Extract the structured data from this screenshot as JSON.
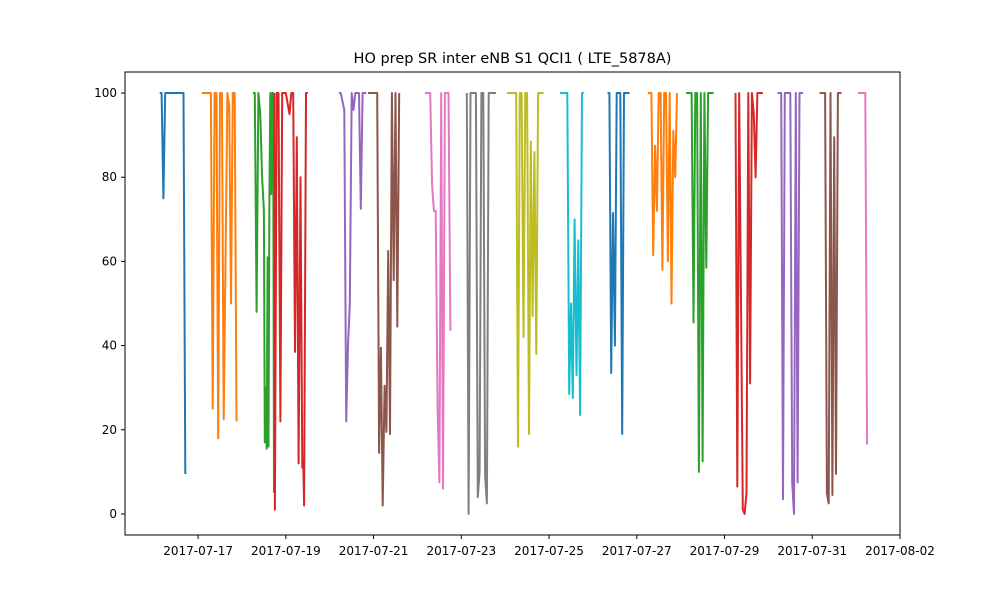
{
  "chart_data": {
    "type": "line",
    "title": "HO prep SR inter eNB S1 QCI1 ( LTE_5878A)",
    "xlabel": "",
    "ylabel": "",
    "x_type": "date",
    "xlim": [
      "2017-07-15T08:00",
      "2017-08-02T00:00"
    ],
    "ylim": [
      -5,
      105
    ],
    "grid": false,
    "x_ticks": [
      "2017-07-17",
      "2017-07-19",
      "2017-07-21",
      "2017-07-23",
      "2017-07-25",
      "2017-07-27",
      "2017-07-29",
      "2017-07-31",
      "2017-08-02"
    ],
    "y_ticks": [
      0,
      20,
      40,
      60,
      80,
      100
    ],
    "series": [
      {
        "color": "#1f77b4",
        "points": [
          [
            "2017-07-16T03:00",
            100
          ],
          [
            "2017-07-16T04:00",
            100
          ],
          [
            "2017-07-16T05:00",
            75
          ],
          [
            "2017-07-16T06:00",
            100
          ],
          [
            "2017-07-16T12:00",
            100
          ],
          [
            "2017-07-16T15:00",
            100
          ],
          [
            "2017-07-16T16:00",
            100
          ],
          [
            "2017-07-16T17:00",
            9.5
          ]
        ]
      },
      {
        "color": "#ff7f0e",
        "points": [
          [
            "2017-07-17T02:00",
            100
          ],
          [
            "2017-07-17T05:00",
            100
          ],
          [
            "2017-07-17T07:00",
            100
          ],
          [
            "2017-07-17T08:00",
            25
          ],
          [
            "2017-07-17T09:00",
            100
          ],
          [
            "2017-07-17T10:00",
            100
          ],
          [
            "2017-07-17T11:00",
            18
          ],
          [
            "2017-07-17T12:00",
            100
          ],
          [
            "2017-07-17T13:00",
            100
          ],
          [
            "2017-07-17T14:00",
            22.5
          ],
          [
            "2017-07-17T16:00",
            100
          ],
          [
            "2017-07-17T17:00",
            97
          ],
          [
            "2017-07-17T18:00",
            50
          ],
          [
            "2017-07-17T19:00",
            100
          ],
          [
            "2017-07-17T20:00",
            100
          ],
          [
            "2017-07-17T21:00",
            22
          ]
        ]
      },
      {
        "color": "#2ca02c",
        "points": [
          [
            "2017-07-18T06:00",
            100
          ],
          [
            "2017-07-18T07:00",
            100
          ],
          [
            "2017-07-18T08:00",
            48
          ],
          [
            "2017-07-18T09:00",
            100
          ],
          [
            "2017-07-18T10:00",
            95
          ],
          [
            "2017-07-18T11:00",
            80
          ],
          [
            "2017-07-18T12:00",
            72
          ],
          [
            "2017-07-18T12:30",
            17
          ],
          [
            "2017-07-18T13:00",
            30
          ],
          [
            "2017-07-18T13:30",
            15.5
          ],
          [
            "2017-07-18T14:00",
            61
          ],
          [
            "2017-07-18T14:30",
            16
          ],
          [
            "2017-07-18T15:00",
            75
          ],
          [
            "2017-07-18T15:30",
            100
          ],
          [
            "2017-07-18T16:00",
            76
          ],
          [
            "2017-07-18T16:30",
            100
          ],
          [
            "2017-07-18T17:00",
            100
          ],
          [
            "2017-07-18T17:30",
            5
          ]
        ]
      },
      {
        "color": "#d62728",
        "points": [
          [
            "2017-07-18T17:40",
            100
          ],
          [
            "2017-07-18T18:00",
            1
          ],
          [
            "2017-07-18T19:00",
            100
          ],
          [
            "2017-07-18T20:00",
            100
          ],
          [
            "2017-07-18T21:00",
            22
          ],
          [
            "2017-07-18T22:00",
            100
          ],
          [
            "2017-07-18T23:00",
            100
          ],
          [
            "2017-07-19T00:00",
            100
          ],
          [
            "2017-07-19T02:00",
            95
          ],
          [
            "2017-07-19T03:00",
            100
          ],
          [
            "2017-07-19T04:00",
            100
          ],
          [
            "2017-07-19T05:00",
            38.5
          ],
          [
            "2017-07-19T06:00",
            89.5
          ],
          [
            "2017-07-19T07:00",
            12
          ],
          [
            "2017-07-19T08:00",
            80
          ],
          [
            "2017-07-19T09:00",
            11
          ],
          [
            "2017-07-19T09:30",
            13
          ],
          [
            "2017-07-19T10:00",
            2
          ],
          [
            "2017-07-19T11:00",
            100
          ],
          [
            "2017-07-19T12:00",
            100
          ]
        ]
      },
      {
        "color": "#9467bd",
        "points": [
          [
            "2017-07-20T05:00",
            100
          ],
          [
            "2017-07-20T06:00",
            100
          ],
          [
            "2017-07-20T07:00",
            98
          ],
          [
            "2017-07-20T08:00",
            96
          ],
          [
            "2017-07-20T09:00",
            22
          ],
          [
            "2017-07-20T10:00",
            40
          ],
          [
            "2017-07-20T11:00",
            50
          ],
          [
            "2017-07-20T12:00",
            100
          ],
          [
            "2017-07-20T13:00",
            96
          ],
          [
            "2017-07-20T14:00",
            100
          ],
          [
            "2017-07-20T16:00",
            100
          ],
          [
            "2017-07-20T17:00",
            72.5
          ],
          [
            "2017-07-20T18:00",
            100
          ],
          [
            "2017-07-20T19:00",
            100
          ],
          [
            "2017-07-20T20:00",
            100
          ]
        ]
      },
      {
        "color": "#8c564b",
        "points": [
          [
            "2017-07-20T21:00",
            100
          ],
          [
            "2017-07-21T00:00",
            100
          ],
          [
            "2017-07-21T01:00",
            100
          ],
          [
            "2017-07-21T02:00",
            100
          ],
          [
            "2017-07-21T03:00",
            14.5
          ],
          [
            "2017-07-21T04:00",
            39.5
          ],
          [
            "2017-07-21T05:00",
            2
          ],
          [
            "2017-07-21T06:00",
            30.5
          ],
          [
            "2017-07-21T07:00",
            19.5
          ],
          [
            "2017-07-21T08:00",
            62.5
          ],
          [
            "2017-07-21T09:00",
            19
          ],
          [
            "2017-07-21T10:00",
            100
          ],
          [
            "2017-07-21T11:00",
            55.5
          ],
          [
            "2017-07-21T12:00",
            100
          ],
          [
            "2017-07-21T13:00",
            44.5
          ],
          [
            "2017-07-21T14:00",
            100
          ]
        ]
      },
      {
        "color": "#e377c2",
        "points": [
          [
            "2017-07-22T04:00",
            100
          ],
          [
            "2017-07-22T06:00",
            100
          ],
          [
            "2017-07-22T07:00",
            100
          ],
          [
            "2017-07-22T08:00",
            78
          ],
          [
            "2017-07-22T09:00",
            72
          ],
          [
            "2017-07-22T10:00",
            72
          ],
          [
            "2017-07-22T11:00",
            25
          ],
          [
            "2017-07-22T12:00",
            7.5
          ],
          [
            "2017-07-22T13:00",
            100
          ],
          [
            "2017-07-22T14:00",
            6
          ],
          [
            "2017-07-22T15:00",
            100
          ],
          [
            "2017-07-22T16:00",
            100
          ],
          [
            "2017-07-22T17:00",
            100
          ],
          [
            "2017-07-22T18:00",
            43.5
          ]
        ]
      },
      {
        "color": "#7f7f7f",
        "points": [
          [
            "2017-07-23T03:00",
            100
          ],
          [
            "2017-07-23T04:00",
            0
          ],
          [
            "2017-07-23T05:00",
            100
          ],
          [
            "2017-07-23T06:00",
            100
          ],
          [
            "2017-07-23T08:00",
            100
          ],
          [
            "2017-07-23T09:00",
            4
          ],
          [
            "2017-07-23T10:00",
            10
          ],
          [
            "2017-07-23T11:00",
            100
          ],
          [
            "2017-07-23T12:00",
            100
          ],
          [
            "2017-07-23T13:00",
            9
          ],
          [
            "2017-07-23T14:00",
            2.5
          ],
          [
            "2017-07-23T15:00",
            100
          ],
          [
            "2017-07-23T16:00",
            100
          ],
          [
            "2017-07-23T17:00",
            100
          ],
          [
            "2017-07-23T18:00",
            100
          ],
          [
            "2017-07-23T19:00",
            100
          ]
        ]
      },
      {
        "color": "#bcbd22",
        "points": [
          [
            "2017-07-24T01:00",
            100
          ],
          [
            "2017-07-24T04:00",
            100
          ],
          [
            "2017-07-24T06:00",
            100
          ],
          [
            "2017-07-24T07:00",
            16
          ],
          [
            "2017-07-24T08:00",
            100
          ],
          [
            "2017-07-24T09:00",
            100
          ],
          [
            "2017-07-24T10:00",
            42
          ],
          [
            "2017-07-24T11:00",
            100
          ],
          [
            "2017-07-24T12:00",
            100
          ],
          [
            "2017-07-24T13:00",
            19
          ],
          [
            "2017-07-24T14:00",
            88.5
          ],
          [
            "2017-07-24T15:00",
            47
          ],
          [
            "2017-07-24T16:00",
            86
          ],
          [
            "2017-07-24T17:00",
            38
          ],
          [
            "2017-07-24T18:00",
            100
          ],
          [
            "2017-07-24T19:00",
            100
          ],
          [
            "2017-07-24T20:00",
            100
          ],
          [
            "2017-07-24T21:00",
            100
          ]
        ]
      },
      {
        "color": "#17becf",
        "points": [
          [
            "2017-07-25T06:00",
            100
          ],
          [
            "2017-07-25T08:00",
            100
          ],
          [
            "2017-07-25T09:00",
            100
          ],
          [
            "2017-07-25T10:00",
            100
          ],
          [
            "2017-07-25T11:00",
            28.5
          ],
          [
            "2017-07-25T12:00",
            50
          ],
          [
            "2017-07-25T13:00",
            27.5
          ],
          [
            "2017-07-25T14:00",
            70
          ],
          [
            "2017-07-25T15:00",
            33
          ],
          [
            "2017-07-25T16:00",
            65
          ],
          [
            "2017-07-25T17:00",
            23.5
          ],
          [
            "2017-07-25T18:00",
            100
          ],
          [
            "2017-07-25T19:00",
            100
          ]
        ]
      },
      {
        "color": "#1f77b4",
        "points": [
          [
            "2017-07-26T08:00",
            100
          ],
          [
            "2017-07-26T09:00",
            100
          ],
          [
            "2017-07-26T10:00",
            33.5
          ],
          [
            "2017-07-26T11:00",
            71.5
          ],
          [
            "2017-07-26T12:00",
            40
          ],
          [
            "2017-07-26T13:00",
            100
          ],
          [
            "2017-07-26T14:00",
            100
          ],
          [
            "2017-07-26T15:00",
            100
          ],
          [
            "2017-07-26T16:00",
            19
          ],
          [
            "2017-07-26T17:00",
            100
          ],
          [
            "2017-07-26T18:00",
            100
          ],
          [
            "2017-07-26T19:00",
            100
          ],
          [
            "2017-07-26T20:00",
            100
          ]
        ]
      },
      {
        "color": "#ff7f0e",
        "points": [
          [
            "2017-07-27T06:00",
            100
          ],
          [
            "2017-07-27T07:00",
            100
          ],
          [
            "2017-07-27T08:00",
            100
          ],
          [
            "2017-07-27T09:00",
            61.5
          ],
          [
            "2017-07-27T10:00",
            87.5
          ],
          [
            "2017-07-27T11:00",
            72
          ],
          [
            "2017-07-27T12:00",
            100
          ],
          [
            "2017-07-27T13:00",
            100
          ],
          [
            "2017-07-27T14:00",
            58
          ],
          [
            "2017-07-27T15:00",
            100
          ],
          [
            "2017-07-27T16:00",
            100
          ],
          [
            "2017-07-27T17:00",
            60
          ],
          [
            "2017-07-27T18:00",
            100
          ],
          [
            "2017-07-27T19:00",
            50
          ],
          [
            "2017-07-27T20:00",
            91
          ],
          [
            "2017-07-27T21:00",
            80
          ],
          [
            "2017-07-27T22:00",
            100
          ]
        ]
      },
      {
        "color": "#2ca02c",
        "points": [
          [
            "2017-07-28T03:00",
            100
          ],
          [
            "2017-07-28T05:00",
            100
          ],
          [
            "2017-07-28T06:00",
            100
          ],
          [
            "2017-07-28T07:00",
            45.5
          ],
          [
            "2017-07-28T08:00",
            100
          ],
          [
            "2017-07-28T09:00",
            100
          ],
          [
            "2017-07-28T10:00",
            10
          ],
          [
            "2017-07-28T11:00",
            100
          ],
          [
            "2017-07-28T12:00",
            12.5
          ],
          [
            "2017-07-28T13:00",
            100
          ],
          [
            "2017-07-28T14:00",
            58.5
          ],
          [
            "2017-07-28T15:00",
            100
          ],
          [
            "2017-07-28T17:00",
            100
          ],
          [
            "2017-07-28T18:00",
            100
          ]
        ]
      },
      {
        "color": "#d62728",
        "points": [
          [
            "2017-07-29T06:00",
            100
          ],
          [
            "2017-07-29T07:00",
            6.5
          ],
          [
            "2017-07-29T08:00",
            100
          ],
          [
            "2017-07-29T10:00",
            1
          ],
          [
            "2017-07-29T11:00",
            0
          ],
          [
            "2017-07-29T12:00",
            5
          ],
          [
            "2017-07-29T13:00",
            100
          ],
          [
            "2017-07-29T14:00",
            31
          ],
          [
            "2017-07-29T15:00",
            100
          ],
          [
            "2017-07-29T16:00",
            95
          ],
          [
            "2017-07-29T17:00",
            80
          ],
          [
            "2017-07-29T18:00",
            100
          ],
          [
            "2017-07-29T19:00",
            100
          ],
          [
            "2017-07-29T20:00",
            100
          ],
          [
            "2017-07-29T21:00",
            100
          ]
        ]
      },
      {
        "color": "#9467bd",
        "points": [
          [
            "2017-07-30T05:00",
            100
          ],
          [
            "2017-07-30T06:00",
            100
          ],
          [
            "2017-07-30T07:00",
            100
          ],
          [
            "2017-07-30T08:00",
            3.5
          ],
          [
            "2017-07-30T09:00",
            100
          ],
          [
            "2017-07-30T11:00",
            100
          ],
          [
            "2017-07-30T12:00",
            100
          ],
          [
            "2017-07-30T13:00",
            7.5
          ],
          [
            "2017-07-30T14:00",
            0
          ],
          [
            "2017-07-30T15:00",
            100
          ],
          [
            "2017-07-30T16:00",
            7.5
          ],
          [
            "2017-07-30T17:00",
            100
          ],
          [
            "2017-07-30T19:00",
            100
          ]
        ]
      },
      {
        "color": "#8c564b",
        "points": [
          [
            "2017-07-31T04:00",
            100
          ],
          [
            "2017-07-31T05:00",
            100
          ],
          [
            "2017-07-31T06:00",
            100
          ],
          [
            "2017-07-31T07:00",
            100
          ],
          [
            "2017-07-31T08:00",
            5
          ],
          [
            "2017-07-31T09:00",
            2.5
          ],
          [
            "2017-07-31T10:00",
            100
          ],
          [
            "2017-07-31T11:00",
            4.5
          ],
          [
            "2017-07-31T12:00",
            89.5
          ],
          [
            "2017-07-31T13:00",
            9.5
          ],
          [
            "2017-07-31T14:00",
            100
          ],
          [
            "2017-07-31T15:00",
            100
          ],
          [
            "2017-07-31T16:00",
            100
          ]
        ]
      },
      {
        "color": "#e377c2",
        "points": [
          [
            "2017-08-01T01:00",
            100
          ],
          [
            "2017-08-01T03:00",
            100
          ],
          [
            "2017-08-01T04:00",
            100
          ],
          [
            "2017-08-01T05:00",
            100
          ],
          [
            "2017-08-01T06:00",
            16.5
          ]
        ]
      }
    ]
  }
}
